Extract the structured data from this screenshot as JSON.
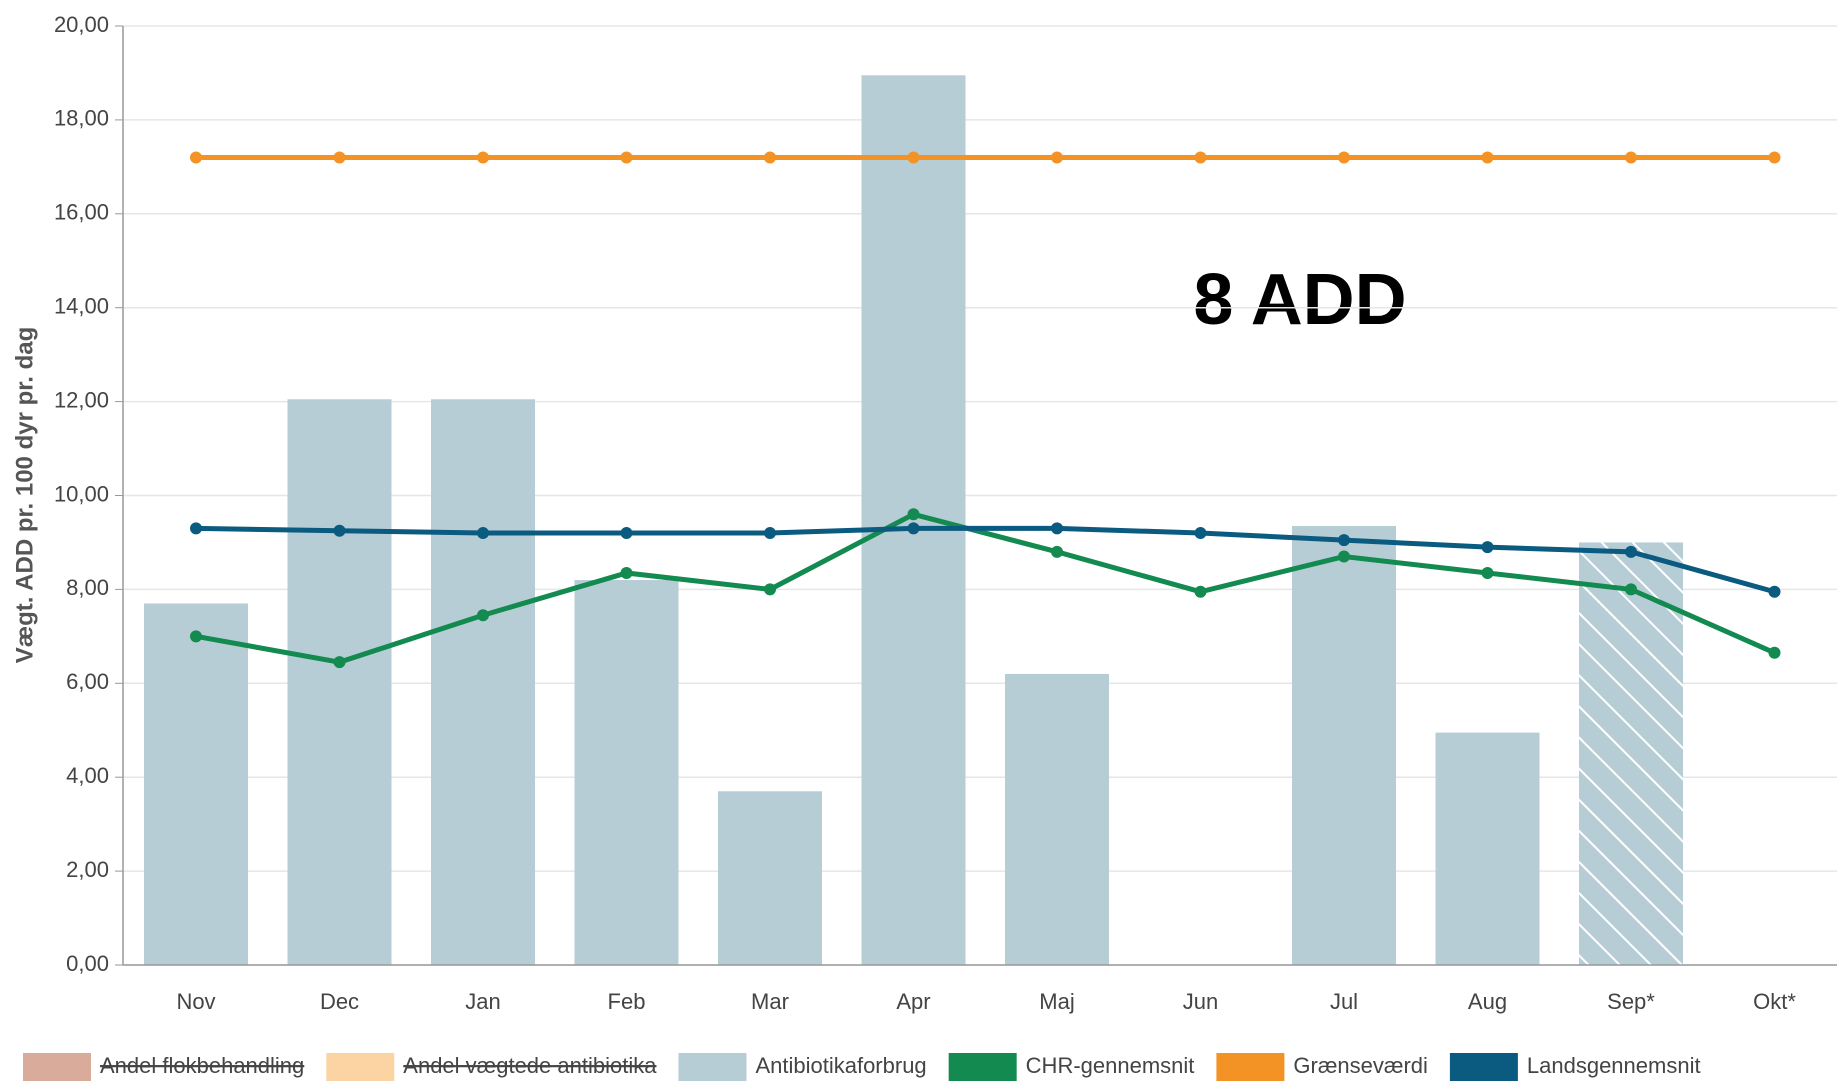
{
  "chart_data": {
    "type": "bar",
    "y_label": "Vægt. ADD pr. 100 dyr pr. dag",
    "annotation": "8 ADD",
    "categories": [
      "Nov",
      "Dec",
      "Jan",
      "Feb",
      "Mar",
      "Apr",
      "Maj",
      "Jun",
      "Jul",
      "Aug",
      "Sep*",
      "Okt*"
    ],
    "hatched": "Sep*",
    "series": [
      {
        "name": "Antibiotikaforbrug",
        "type": "bar",
        "color": "#b7cdd6",
        "values": [
          7.7,
          12.05,
          12.05,
          8.2,
          3.7,
          18.95,
          6.2,
          null,
          9.35,
          4.95,
          9.0,
          null
        ]
      },
      {
        "name": "CHR-gennemsnit",
        "type": "line",
        "color": "#138a4f",
        "values": [
          7.0,
          6.45,
          7.45,
          8.35,
          8.0,
          9.6,
          8.8,
          7.95,
          8.7,
          8.35,
          8.0,
          6.65
        ]
      },
      {
        "name": "Grænseværdi",
        "type": "line",
        "color": "#f39325",
        "values": [
          17.2,
          17.2,
          17.2,
          17.2,
          17.2,
          17.2,
          17.2,
          17.2,
          17.2,
          17.2,
          17.2,
          17.2
        ]
      },
      {
        "name": "Landsgennemsnit",
        "type": "line",
        "color": "#0b5a80",
        "values": [
          9.3,
          9.25,
          9.2,
          9.2,
          9.2,
          9.3,
          9.3,
          9.2,
          9.05,
          8.9,
          8.8,
          7.95
        ]
      }
    ],
    "hidden_series": [
      {
        "name": "Andel flokbehandling",
        "color": "#d9ab9a"
      },
      {
        "name": "Andel vægtede antibiotika",
        "color": "#fcd3a2"
      }
    ],
    "ylim": [
      0,
      20
    ],
    "yticks": [
      {
        "value": 0,
        "label": "0,00"
      },
      {
        "value": 2,
        "label": "2,00"
      },
      {
        "value": 4,
        "label": "4,00"
      },
      {
        "value": 6,
        "label": "6,00"
      },
      {
        "value": 8,
        "label": "8,00"
      },
      {
        "value": 10,
        "label": "10,00"
      },
      {
        "value": 12,
        "label": "12,00"
      },
      {
        "value": 14,
        "label": "14,00"
      },
      {
        "value": 16,
        "label": "16,00"
      },
      {
        "value": 18,
        "label": "18,00"
      },
      {
        "value": 20,
        "label": "20,00"
      }
    ],
    "grid": true
  }
}
